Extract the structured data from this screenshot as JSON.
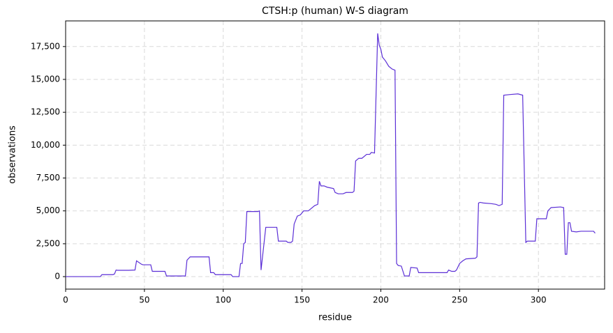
{
  "chart_data": {
    "type": "line",
    "title": "CTSH:p (human) W-S diagram",
    "xlabel": "residue",
    "ylabel": "observations",
    "x": [
      0,
      22,
      23,
      30,
      31,
      32,
      33,
      40,
      44,
      45,
      48,
      49,
      54,
      55,
      63,
      64,
      76,
      77,
      79,
      91,
      92,
      94,
      95,
      105,
      106,
      110,
      111,
      112,
      113,
      114,
      115,
      122,
      123,
      124,
      127,
      134,
      135,
      140,
      141,
      143,
      144,
      145,
      146,
      147,
      149,
      151,
      154,
      158,
      160,
      161,
      162,
      164,
      166,
      170,
      171,
      173,
      176,
      178,
      182,
      183,
      184,
      186,
      188,
      191,
      193,
      194,
      196,
      198,
      199,
      200,
      201,
      203,
      205,
      207,
      209,
      210,
      211,
      213,
      215,
      218,
      219,
      223,
      224,
      242,
      243,
      245,
      247,
      248,
      250,
      252,
      254,
      260,
      261,
      262,
      263,
      265,
      270,
      273,
      275,
      277,
      278,
      282,
      287,
      290,
      292,
      293,
      298,
      299,
      305,
      306,
      308,
      314,
      316,
      317,
      318,
      319,
      320,
      321,
      324,
      327,
      335,
      336
    ],
    "series": [
      {
        "name": "observations",
        "color": "#5b2fd6",
        "values": [
          0,
          0,
          150,
          150,
          200,
          500,
          480,
          480,
          500,
          1200,
          950,
          900,
          900,
          400,
          400,
          50,
          50,
          1250,
          1500,
          1500,
          300,
          300,
          150,
          150,
          0,
          0,
          1000,
          1000,
          2500,
          2600,
          4950,
          4950,
          5000,
          500,
          3750,
          3750,
          2700,
          2700,
          2600,
          2600,
          2700,
          4000,
          4300,
          4600,
          4700,
          5000,
          5000,
          5400,
          5500,
          7250,
          6900,
          6900,
          6800,
          6700,
          6400,
          6300,
          6300,
          6400,
          6400,
          6500,
          8800,
          9000,
          9000,
          9300,
          9300,
          9450,
          9400,
          18500,
          17600,
          17300,
          16700,
          16400,
          16000,
          15800,
          15700,
          1000,
          850,
          800,
          50,
          50,
          700,
          650,
          300,
          300,
          500,
          400,
          400,
          500,
          1000,
          1200,
          1350,
          1400,
          1500,
          5600,
          5650,
          5600,
          5550,
          5500,
          5400,
          5500,
          13800,
          13850,
          13900,
          13800,
          2600,
          2700,
          2700,
          4400,
          4400,
          5000,
          5250,
          5300,
          5250,
          1700,
          1700,
          4100,
          4100,
          3450,
          3400,
          3450,
          3450,
          3300
        ]
      }
    ],
    "xlim": [
      0,
      342
    ],
    "ylim": [
      -950,
      19450
    ],
    "xticks": [
      0,
      50,
      100,
      150,
      200,
      250,
      300
    ],
    "yticks": [
      0,
      {
        "value": 2500,
        "label": "2,500"
      },
      {
        "value": 5000,
        "label": "5,000"
      },
      {
        "value": 7500,
        "label": "7,500"
      },
      {
        "value": 10000,
        "label": "10,000"
      },
      {
        "value": 12500,
        "label": "12,500"
      },
      {
        "value": 15000,
        "label": "15,000"
      },
      {
        "value": 17500,
        "label": "17,500"
      }
    ],
    "grid": true
  }
}
